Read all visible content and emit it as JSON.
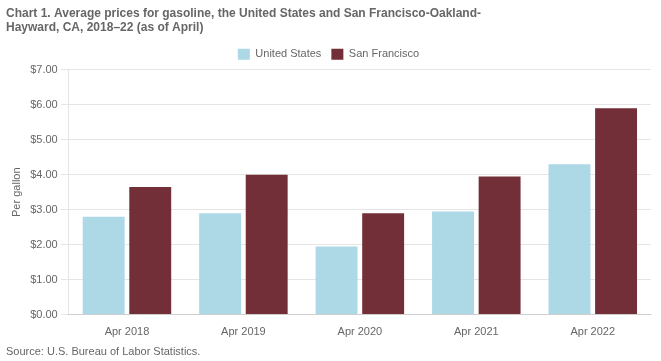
{
  "chart_data": {
    "type": "bar",
    "title": "Chart 1. Average prices for gasoline, the United States and San Francisco-Oakland-\nHayward, CA, 2018–22 (as of April)",
    "ylabel": "Per gallon",
    "source": "Source: U.S. Bureau of Labor Statistics.",
    "categories": [
      "Apr 2018",
      "Apr 2019",
      "Apr 2020",
      "Apr 2021",
      "Apr 2022"
    ],
    "series": [
      {
        "name": "United States",
        "color": "#add8e6",
        "values": [
          2.8,
          2.9,
          1.95,
          2.95,
          4.3
        ]
      },
      {
        "name": "San Francisco",
        "color": "#722F37",
        "values": [
          3.65,
          4.0,
          2.9,
          3.95,
          5.9
        ]
      }
    ],
    "ylim": [
      0,
      7.0
    ],
    "yticks": [
      {
        "value": 0.0,
        "label": "$0.00"
      },
      {
        "value": 1.0,
        "label": "$1.00"
      },
      {
        "value": 2.0,
        "label": "$2.00"
      },
      {
        "value": 3.0,
        "label": "$3.00"
      },
      {
        "value": 4.0,
        "label": "$4.00"
      },
      {
        "value": 5.0,
        "label": "$5.00"
      },
      {
        "value": 6.0,
        "label": "$6.00"
      },
      {
        "value": 7.0,
        "label": "$7.00"
      }
    ],
    "grid": true,
    "legend": "top"
  }
}
